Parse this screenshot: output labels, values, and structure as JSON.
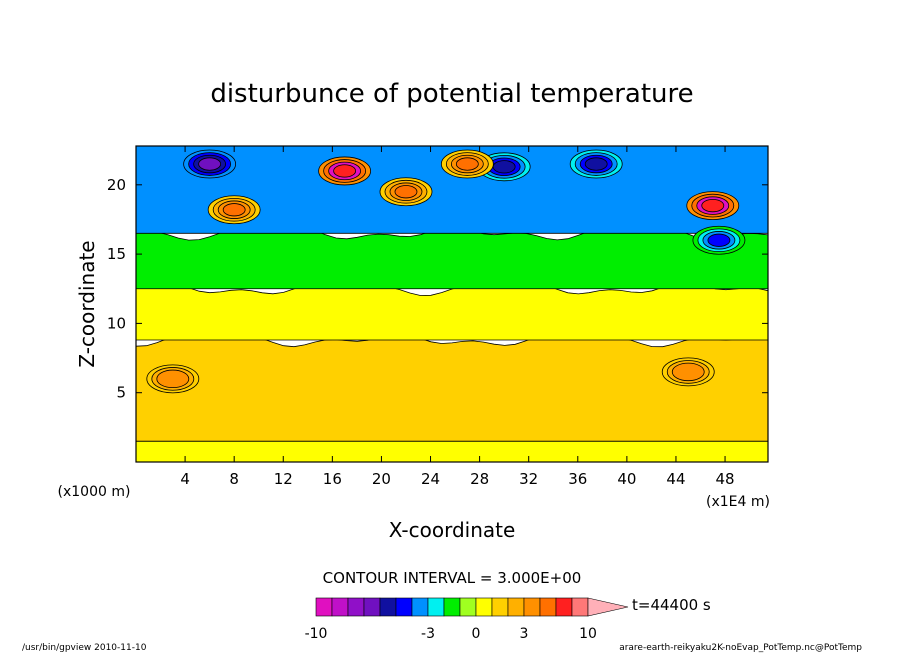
{
  "chart_data": {
    "type": "heatmap",
    "title": "disturbunce of potential temperature",
    "xlabel": "X-coordinate",
    "ylabel": "Z-coordinate",
    "x_unit": "(x1E4 m)",
    "y_unit": "(x1000 m)",
    "xlim": [
      0,
      51.5
    ],
    "ylim": [
      0,
      22.8
    ],
    "x_ticks": [
      "4",
      "8",
      "12",
      "16",
      "20",
      "24",
      "28",
      "32",
      "36",
      "40",
      "44",
      "48"
    ],
    "y_ticks": [
      "5",
      "10",
      "15",
      "20"
    ],
    "contour_interval": "CONTOUR INTERVAL = 3.000E+00",
    "time_label": "t=44400 s",
    "colorbar": {
      "levels": [
        -10,
        -9,
        -8,
        -7,
        -6,
        -5,
        -4,
        -3,
        -2,
        -1,
        0,
        1,
        2,
        3,
        4,
        6,
        8,
        10
      ],
      "tick_labels": [
        "-10",
        "-3",
        "0",
        "3",
        "10"
      ],
      "tick_values": [
        -10,
        -3,
        0,
        3,
        10
      ],
      "colors": [
        "#e010c0",
        "#c010c8",
        "#9010c8",
        "#7010c0",
        "#1010a0",
        "#0000ff",
        "#0090ff",
        "#00f0f0",
        "#00ee00",
        "#a0ff20",
        "#ffff00",
        "#ffd000",
        "#ffb000",
        "#ff9000",
        "#ff7000",
        "#ff2020",
        "#ff7878",
        "#ffb0b8"
      ]
    },
    "bands": [
      {
        "z_range": [
          0,
          1.5
        ],
        "value": 1,
        "color": "#ffff00"
      },
      {
        "z_range": [
          1.5,
          8.8
        ],
        "value": 2,
        "color": "#ffd000"
      },
      {
        "z_range": [
          8.8,
          12.5
        ],
        "value": 1,
        "color": "#ffff00"
      },
      {
        "z_range": [
          12.5,
          16.5
        ],
        "value": -1,
        "color": "#00ee00"
      },
      {
        "z_range": [
          16.5,
          22.8
        ],
        "value": -3,
        "color": "#0090ff"
      }
    ],
    "features": [
      {
        "x": 17,
        "z": 21.0,
        "value": 6
      },
      {
        "x": 47,
        "z": 18.5,
        "value": 6
      },
      {
        "x": 6,
        "z": 21.5,
        "value": -7
      },
      {
        "x": 30,
        "z": 21.3,
        "value": -6
      },
      {
        "x": 37.5,
        "z": 21.5,
        "value": -6
      },
      {
        "x": 47.5,
        "z": 16.0,
        "value": -5
      },
      {
        "x": 22,
        "z": 19.5,
        "value": 4
      },
      {
        "x": 27,
        "z": 21.5,
        "value": 4
      },
      {
        "x": 8,
        "z": 18.2,
        "value": 4
      },
      {
        "x": 3,
        "z": 6.0,
        "value": 3
      },
      {
        "x": 45,
        "z": 6.5,
        "value": 3
      }
    ]
  },
  "footer": {
    "left": "/usr/bin/gpview  2010-11-10",
    "right": "arare-earth-reikyaku2K-noEvap_PotTemp.nc@PotTemp"
  }
}
